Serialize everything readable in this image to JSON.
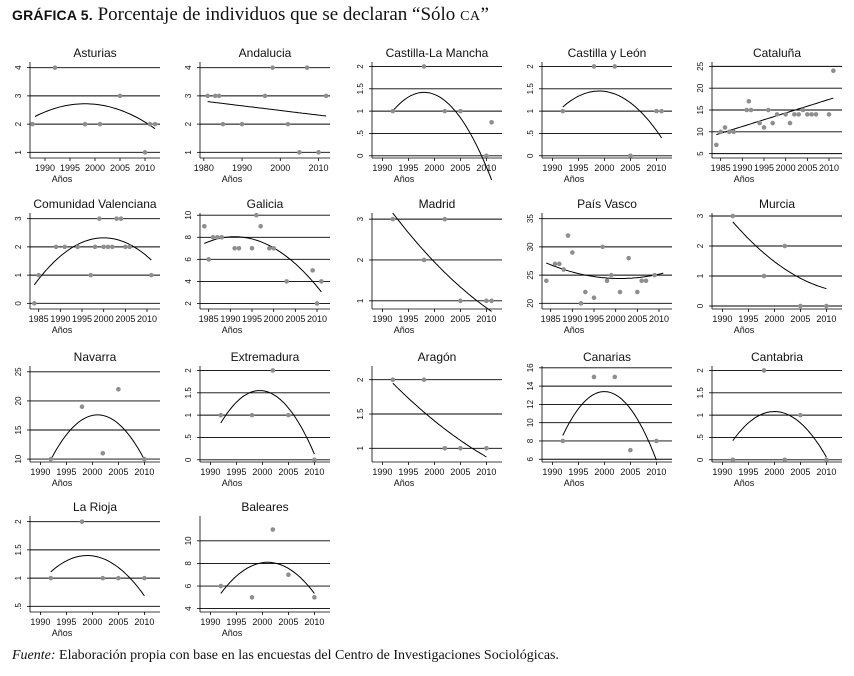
{
  "figure": {
    "label": "GRÁFICA 5.",
    "title_pre": "Porcentaje de individuos que se declaran “Sólo ",
    "title_sc": "CA",
    "title_post": "”",
    "xlabel": "Años",
    "source_label": "Fuente:",
    "source_text": "Elaboración propia con base en las encuestas del Centro de Investigaciones Sociológicas."
  },
  "chart_data": [
    {
      "type": "scatter",
      "title": "Asturias",
      "xlabel": "Años",
      "xlim": [
        1987,
        2013
      ],
      "ylim": [
        0.8,
        4.2
      ],
      "xticks": [
        1990,
        1995,
        2000,
        2005,
        2010
      ],
      "yticks": [
        1,
        2,
        3,
        4
      ],
      "ytick_labels": [
        "1",
        "2",
        "3",
        "4"
      ],
      "points": [
        [
          1987.5,
          2
        ],
        [
          1992,
          4
        ],
        [
          1998,
          2
        ],
        [
          2001,
          2
        ],
        [
          2005,
          3
        ],
        [
          2010,
          1
        ],
        [
          2011,
          2
        ],
        [
          2012,
          2
        ]
      ],
      "fit": [
        -0.0045,
        0.0,
        2.72,
        1998,
        1988,
        2012
      ]
    },
    {
      "type": "scatter",
      "title": "Andalucia",
      "xlabel": "Años",
      "xlim": [
        1979,
        2013
      ],
      "ylim": [
        0.8,
        4.2
      ],
      "xticks": [
        1980,
        1990,
        2000,
        2010
      ],
      "yticks": [
        1,
        2,
        3,
        4
      ],
      "ytick_labels": [
        "1",
        "2",
        "3",
        "4"
      ],
      "points": [
        [
          1981,
          3
        ],
        [
          1983,
          3
        ],
        [
          1984,
          3
        ],
        [
          1985,
          2
        ],
        [
          1990,
          2
        ],
        [
          1996,
          3
        ],
        [
          1998,
          4
        ],
        [
          2002,
          2
        ],
        [
          2005,
          1
        ],
        [
          2007,
          4
        ],
        [
          2010,
          1
        ],
        [
          2012,
          3
        ]
      ],
      "fit": [
        0,
        -0.0165,
        2.55,
        1996,
        1981,
        2012
      ]
    },
    {
      "type": "scatter",
      "title": "Castilla-La Mancha",
      "xlabel": "Años",
      "xlim": [
        1988,
        2013
      ],
      "ylim": [
        -0.05,
        2.1
      ],
      "xticks": [
        1990,
        1995,
        2000,
        2005,
        2010
      ],
      "yticks": [
        0,
        0.5,
        1,
        1.5,
        2
      ],
      "ytick_labels": [
        "0",
        ".5",
        "1",
        "1.5",
        "2"
      ],
      "points": [
        [
          1992,
          1
        ],
        [
          1998,
          2
        ],
        [
          2002,
          1
        ],
        [
          2005,
          1
        ],
        [
          2010,
          0
        ],
        [
          2011,
          0.75
        ]
      ],
      "fit": [
        -0.0116,
        0,
        1.42,
        1998,
        1992,
        2011
      ]
    },
    {
      "type": "scatter",
      "title": "Castilla y León",
      "xlabel": "Años",
      "xlim": [
        1988,
        2013
      ],
      "ylim": [
        -0.05,
        2.1
      ],
      "xticks": [
        1990,
        1995,
        2000,
        2005,
        2010
      ],
      "yticks": [
        0,
        0.5,
        1,
        1.5,
        2
      ],
      "ytick_labels": [
        "0",
        ".5",
        "1",
        "1.5",
        "2"
      ],
      "points": [
        [
          1992,
          1
        ],
        [
          1998,
          2
        ],
        [
          2002,
          2
        ],
        [
          2005,
          0
        ],
        [
          2010,
          1
        ],
        [
          2011,
          1
        ]
      ],
      "fit": [
        -0.0073,
        0,
        1.45,
        1999,
        1992,
        2011
      ]
    },
    {
      "type": "scatter",
      "title": "Cataluña",
      "xlabel": "Años",
      "xlim": [
        1983,
        2013
      ],
      "ylim": [
        4,
        26
      ],
      "xticks": [
        1985,
        1990,
        1995,
        2000,
        2005,
        2010
      ],
      "yticks": [
        5,
        10,
        15,
        20,
        25
      ],
      "ytick_labels": [
        "5",
        "10",
        "15",
        "20",
        "25"
      ],
      "points": [
        [
          1984,
          7
        ],
        [
          1985,
          10
        ],
        [
          1986,
          11
        ],
        [
          1987,
          10
        ],
        [
          1988,
          10
        ],
        [
          1991,
          15
        ],
        [
          1991.5,
          17
        ],
        [
          1992,
          15
        ],
        [
          1994,
          12
        ],
        [
          1995,
          11
        ],
        [
          1996,
          15
        ],
        [
          1997,
          12
        ],
        [
          1998,
          14
        ],
        [
          2000,
          14
        ],
        [
          2001,
          12
        ],
        [
          2002,
          14
        ],
        [
          2003,
          14
        ],
        [
          2004,
          15
        ],
        [
          2005,
          14
        ],
        [
          2006,
          14
        ],
        [
          2007,
          14
        ],
        [
          2010,
          14
        ],
        [
          2011,
          24
        ]
      ],
      "fit": [
        0,
        0.31,
        13.7,
        1998,
        1984,
        2011
      ]
    },
    {
      "type": "scatter",
      "title": "Comunidad Valenciana",
      "xlabel": "Años",
      "xlim": [
        1983,
        2013
      ],
      "ylim": [
        -0.2,
        3.2
      ],
      "xticks": [
        1985,
        1990,
        1995,
        2000,
        2005,
        2010
      ],
      "yticks": [
        0,
        1,
        2,
        3
      ],
      "ytick_labels": [
        "0",
        "1",
        "2",
        "3"
      ],
      "points": [
        [
          1984,
          0
        ],
        [
          1985,
          1
        ],
        [
          1989,
          2
        ],
        [
          1991,
          2
        ],
        [
          1994,
          2
        ],
        [
          1997,
          1
        ],
        [
          1998,
          2
        ],
        [
          1999,
          3
        ],
        [
          2000,
          2
        ],
        [
          2001,
          2
        ],
        [
          2002,
          2
        ],
        [
          2003,
          3
        ],
        [
          2004,
          3
        ],
        [
          2005,
          2
        ],
        [
          2006,
          2
        ],
        [
          2011,
          1
        ]
      ],
      "fit": [
        -0.0065,
        0,
        2.32,
        2000,
        1984,
        2011
      ]
    },
    {
      "type": "scatter",
      "title": "Galicia",
      "xlabel": "Años",
      "xlim": [
        1983,
        2013
      ],
      "ylim": [
        1.5,
        10.2
      ],
      "xticks": [
        1985,
        1990,
        1995,
        2000,
        2005,
        2010
      ],
      "yticks": [
        2,
        4,
        6,
        8,
        10
      ],
      "ytick_labels": [
        "2",
        "4",
        "6",
        "8",
        "10"
      ],
      "points": [
        [
          1984,
          9
        ],
        [
          1985,
          6
        ],
        [
          1986,
          8
        ],
        [
          1987,
          8
        ],
        [
          1988,
          8
        ],
        [
          1991,
          7
        ],
        [
          1992,
          7
        ],
        [
          1995,
          7
        ],
        [
          1996,
          10
        ],
        [
          1997,
          9
        ],
        [
          1999,
          7
        ],
        [
          2000,
          7
        ],
        [
          2003,
          4
        ],
        [
          2009,
          5
        ],
        [
          2010,
          2
        ],
        [
          2011,
          4
        ]
      ],
      "fit": [
        -0.0125,
        0,
        8.05,
        1991,
        1984,
        2011
      ]
    },
    {
      "type": "scatter",
      "title": "Madrid",
      "xlabel": "Años",
      "xlim": [
        1988,
        2013
      ],
      "ylim": [
        0.8,
        3.15
      ],
      "xticks": [
        1990,
        1995,
        2000,
        2005,
        2010
      ],
      "yticks": [
        1,
        2,
        3
      ],
      "ytick_labels": [
        "1",
        "2",
        "3"
      ],
      "points": [
        [
          1992,
          3
        ],
        [
          1998,
          2
        ],
        [
          2002,
          3
        ],
        [
          2005,
          1
        ],
        [
          2010,
          1
        ],
        [
          2011,
          1
        ]
      ],
      "fit": [
        0.0021,
        -0.133,
        1.95,
        2000,
        1992,
        2011
      ]
    },
    {
      "type": "scatter",
      "title": "País Vasco",
      "xlabel": "Años",
      "xlim": [
        1983,
        2013
      ],
      "ylim": [
        19,
        36
      ],
      "xticks": [
        1985,
        1990,
        1995,
        2000,
        2005,
        2010
      ],
      "yticks": [
        20,
        25,
        30,
        35
      ],
      "ytick_labels": [
        "20",
        "25",
        "30",
        "35"
      ],
      "points": [
        [
          1984,
          24
        ],
        [
          1986,
          27
        ],
        [
          1987,
          27
        ],
        [
          1988,
          26
        ],
        [
          1989,
          32
        ],
        [
          1990,
          29
        ],
        [
          1992,
          20
        ],
        [
          1993,
          22
        ],
        [
          1995,
          21
        ],
        [
          1997,
          30
        ],
        [
          1998,
          24
        ],
        [
          1999,
          25
        ],
        [
          2001,
          22
        ],
        [
          2003,
          28
        ],
        [
          2005,
          22
        ],
        [
          2006,
          24
        ],
        [
          2007,
          24
        ],
        [
          2009,
          25
        ]
      ],
      "fit": [
        0.0095,
        0,
        24.4,
        2001,
        1984,
        2011
      ]
    },
    {
      "type": "scatter",
      "title": "Murcia",
      "xlabel": "Años",
      "xlim": [
        1988,
        2013
      ],
      "ylim": [
        -0.1,
        3.1
      ],
      "xticks": [
        1990,
        1995,
        2000,
        2005,
        2010
      ],
      "yticks": [
        0,
        1,
        2,
        3
      ],
      "ytick_labels": [
        "0",
        "1",
        "2",
        "3"
      ],
      "points": [
        [
          1992,
          3
        ],
        [
          1998,
          1
        ],
        [
          2002,
          2
        ],
        [
          2005,
          0
        ],
        [
          2010,
          0
        ]
      ],
      "fit": [
        0.0042,
        -0.132,
        1.48,
        2000,
        1992,
        2010
      ]
    },
    {
      "type": "scatter",
      "title": "Navarra",
      "xlabel": "Años",
      "xlim": [
        1988,
        2013
      ],
      "ylim": [
        9.5,
        26
      ],
      "xticks": [
        1990,
        1995,
        2000,
        2005,
        2010
      ],
      "yticks": [
        10,
        15,
        20,
        25
      ],
      "ytick_labels": [
        "10",
        "15",
        "20",
        "25"
      ],
      "points": [
        [
          1992,
          10
        ],
        [
          1998,
          19
        ],
        [
          2002,
          11
        ],
        [
          2005,
          22
        ],
        [
          2010,
          10
        ]
      ],
      "fit": [
        -0.095,
        0,
        17.6,
        2001,
        1992,
        2010
      ]
    },
    {
      "type": "scatter",
      "title": "Extremadura",
      "xlabel": "Años",
      "xlim": [
        1988,
        2013
      ],
      "ylim": [
        -0.05,
        2.1
      ],
      "xticks": [
        1990,
        1995,
        2000,
        2005,
        2010
      ],
      "yticks": [
        0,
        0.5,
        1,
        1.5,
        2
      ],
      "ytick_labels": [
        "0",
        ".5",
        "1",
        "1.5",
        "2"
      ],
      "points": [
        [
          1992,
          1
        ],
        [
          1998,
          1
        ],
        [
          2002,
          2
        ],
        [
          2005,
          1
        ],
        [
          2010,
          0
        ]
      ],
      "fit": [
        -0.0129,
        0,
        1.55,
        1999.5,
        1992,
        2010
      ]
    },
    {
      "type": "scatter",
      "title": "Aragón",
      "xlabel": "Años",
      "xlim": [
        1988,
        2013
      ],
      "ylim": [
        0.8,
        2.2
      ],
      "xticks": [
        1990,
        1995,
        2000,
        2005,
        2010
      ],
      "yticks": [
        1,
        1.5,
        2
      ],
      "ytick_labels": [
        "1",
        "1.5",
        "2"
      ],
      "points": [
        [
          1992,
          2
        ],
        [
          1998,
          2
        ],
        [
          2002,
          1
        ],
        [
          2005,
          1
        ],
        [
          2010,
          1
        ]
      ],
      "fit": [
        0.0009,
        -0.0615,
        1.4,
        2000,
        1992,
        2010
      ]
    },
    {
      "type": "scatter",
      "title": "Canarias",
      "xlabel": "Años",
      "xlim": [
        1988,
        2013
      ],
      "ylim": [
        5.7,
        16.2
      ],
      "xticks": [
        1990,
        1995,
        2000,
        2005,
        2010
      ],
      "yticks": [
        6,
        8,
        10,
        12,
        14,
        16
      ],
      "ytick_labels": [
        "6",
        "8",
        "10",
        "12",
        "14",
        "16"
      ],
      "points": [
        [
          1992,
          8
        ],
        [
          1998,
          15
        ],
        [
          2002,
          15
        ],
        [
          2005,
          7
        ],
        [
          2010,
          8
        ]
      ],
      "fit": [
        -0.075,
        0,
        13.4,
        2000,
        1992,
        2010
      ]
    },
    {
      "type": "scatter",
      "title": "Cantabria",
      "xlabel": "Años",
      "xlim": [
        1988,
        2013
      ],
      "ylim": [
        -0.05,
        2.1
      ],
      "xticks": [
        1990,
        1995,
        2000,
        2005,
        2010
      ],
      "yticks": [
        0,
        0.5,
        1,
        1.5,
        2
      ],
      "ytick_labels": [
        "0",
        ".5",
        "1",
        "1.5",
        "2"
      ],
      "points": [
        [
          1992,
          0
        ],
        [
          1998,
          2
        ],
        [
          2002,
          0
        ],
        [
          2005,
          1
        ],
        [
          2010,
          0
        ]
      ],
      "fit": [
        -0.0102,
        0,
        1.08,
        2000,
        1992,
        2010
      ]
    },
    {
      "type": "scatter",
      "title": "La Rioja",
      "xlabel": "Años",
      "xlim": [
        1988,
        2013
      ],
      "ylim": [
        0.4,
        2.1
      ],
      "xticks": [
        1990,
        1995,
        2000,
        2005,
        2010
      ],
      "yticks": [
        0.5,
        1,
        1.5,
        2
      ],
      "ytick_labels": [
        ".5",
        "1",
        "1.5",
        "2"
      ],
      "points": [
        [
          1992,
          1
        ],
        [
          1998,
          2
        ],
        [
          2002,
          1
        ],
        [
          2005,
          1
        ],
        [
          2010,
          1
        ]
      ],
      "fit": [
        -0.0059,
        0,
        1.4,
        1999,
        1992,
        2010
      ]
    },
    {
      "type": "scatter",
      "title": "Baleares",
      "xlabel": "Años",
      "xlim": [
        1988,
        2013
      ],
      "ylim": [
        3.7,
        12.2
      ],
      "xticks": [
        1990,
        1995,
        2000,
        2005,
        2010
      ],
      "yticks": [
        4,
        6,
        8,
        10
      ],
      "ytick_labels": [
        "4",
        "6",
        "8",
        "10"
      ],
      "points": [
        [
          1992,
          6
        ],
        [
          1998,
          5
        ],
        [
          2002,
          11
        ],
        [
          2005,
          7
        ],
        [
          2010,
          5
        ]
      ],
      "fit": [
        -0.034,
        0,
        8.1,
        2001,
        1992,
        2010
      ]
    }
  ]
}
